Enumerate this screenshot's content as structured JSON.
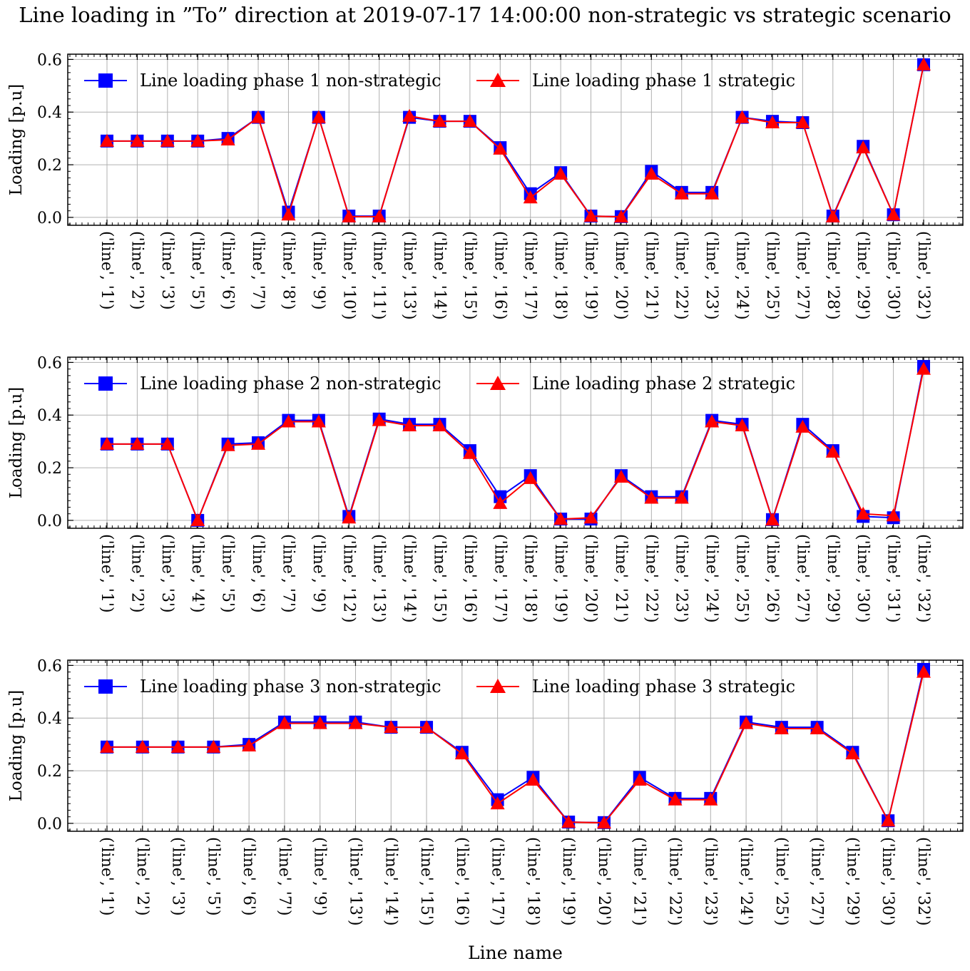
{
  "title": "Line loading in ”To” direction at 2019-07-17 14:00:00 non-strategic vs strategic scenario",
  "xlabel": "Line name",
  "colors": {
    "non_strategic": "#0000ff",
    "strategic": "#ff0000",
    "grid": "#b0b0b0"
  },
  "chart_data": [
    {
      "type": "line",
      "ylabel": "Loading [p.u]",
      "ylim": [
        -0.03,
        0.62
      ],
      "yticks": [
        "0.0",
        "0.2",
        "0.4",
        "0.6"
      ],
      "grid": true,
      "legend_placement": "top",
      "categories": [
        "('line', '1')",
        "('line', '2')",
        "('line', '3')",
        "('line', '5')",
        "('line', '6')",
        "('line', '7')",
        "('line', '8')",
        "('line', '9')",
        "('line', '10')",
        "('line', '11')",
        "('line', '13')",
        "('line', '14')",
        "('line', '15')",
        "('line', '16')",
        "('line', '17')",
        "('line', '18')",
        "('line', '19')",
        "('line', '20')",
        "('line', '21')",
        "('line', '22')",
        "('line', '23')",
        "('line', '24')",
        "('line', '25')",
        "('line', '27')",
        "('line', '28')",
        "('line', '29')",
        "('line', '30')",
        "('line', '32')"
      ],
      "series": [
        {
          "name": "Line loading phase 1 non-strategic",
          "marker": "square",
          "values": [
            0.29,
            0.29,
            0.29,
            0.29,
            0.3,
            0.38,
            0.02,
            0.38,
            0.005,
            0.005,
            0.38,
            0.365,
            0.365,
            0.265,
            0.09,
            0.17,
            0.005,
            0.003,
            0.175,
            0.095,
            0.095,
            0.38,
            0.365,
            0.36,
            0.005,
            0.27,
            0.01,
            0.58
          ]
        },
        {
          "name": "Line loading phase 1 strategic",
          "marker": "triangle",
          "values": [
            0.29,
            0.29,
            0.29,
            0.29,
            0.295,
            0.38,
            0.01,
            0.38,
            0.003,
            0.003,
            0.385,
            0.365,
            0.365,
            0.26,
            0.075,
            0.165,
            0.005,
            0.002,
            0.165,
            0.09,
            0.09,
            0.38,
            0.36,
            0.36,
            0.003,
            0.265,
            0.01,
            0.58
          ]
        }
      ]
    },
    {
      "type": "line",
      "ylabel": "Loading [p.u]",
      "ylim": [
        -0.03,
        0.62
      ],
      "yticks": [
        "0.0",
        "0.2",
        "0.4",
        "0.6"
      ],
      "grid": true,
      "legend_placement": "top",
      "categories": [
        "('line', '1')",
        "('line', '2')",
        "('line', '3')",
        "('line', '4')",
        "('line', '5')",
        "('line', '6')",
        "('line', '7')",
        "('line', '9')",
        "('line', '12')",
        "('line', '13')",
        "('line', '14')",
        "('line', '15')",
        "('line', '16')",
        "('line', '17')",
        "('line', '18')",
        "('line', '19')",
        "('line', '20')",
        "('line', '21')",
        "('line', '22')",
        "('line', '23')",
        "('line', '24')",
        "('line', '25')",
        "('line', '26')",
        "('line', '27')",
        "('line', '29')",
        "('line', '30')",
        "('line', '31')",
        "('line', '32')"
      ],
      "series": [
        {
          "name": "Line loading phase 2 non-strategic",
          "marker": "square",
          "values": [
            0.29,
            0.29,
            0.29,
            0.0,
            0.29,
            0.295,
            0.38,
            0.38,
            0.015,
            0.385,
            0.365,
            0.365,
            0.265,
            0.09,
            0.17,
            0.005,
            0.005,
            0.17,
            0.09,
            0.09,
            0.38,
            0.365,
            0.003,
            0.365,
            0.265,
            0.015,
            0.01,
            0.585
          ]
        },
        {
          "name": "Line loading phase 2 strategic",
          "marker": "triangle",
          "values": [
            0.29,
            0.29,
            0.29,
            0.0,
            0.285,
            0.29,
            0.375,
            0.375,
            0.01,
            0.38,
            0.36,
            0.36,
            0.255,
            0.065,
            0.16,
            0.005,
            0.01,
            0.165,
            0.085,
            0.085,
            0.375,
            0.36,
            0.002,
            0.355,
            0.26,
            0.025,
            0.018,
            0.575
          ]
        }
      ]
    },
    {
      "type": "line",
      "ylabel": "Loading [p.u]",
      "ylim": [
        -0.03,
        0.62
      ],
      "yticks": [
        "0.0",
        "0.2",
        "0.4",
        "0.6"
      ],
      "grid": true,
      "legend_placement": "top",
      "categories": [
        "('line', '1')",
        "('line', '2')",
        "('line', '3')",
        "('line', '5')",
        "('line', '6')",
        "('line', '7')",
        "('line', '9')",
        "('line', '13')",
        "('line', '14')",
        "('line', '15')",
        "('line', '16')",
        "('line', '17')",
        "('line', '18')",
        "('line', '19')",
        "('line', '20')",
        "('line', '21')",
        "('line', '22')",
        "('line', '23')",
        "('line', '24')",
        "('line', '25')",
        "('line', '27')",
        "('line', '29')",
        "('line', '30')",
        "('line', '32')"
      ],
      "series": [
        {
          "name": "Line loading phase 3 non-strategic",
          "marker": "square",
          "values": [
            0.29,
            0.29,
            0.29,
            0.29,
            0.3,
            0.385,
            0.385,
            0.385,
            0.365,
            0.365,
            0.27,
            0.09,
            0.175,
            0.005,
            0.003,
            0.175,
            0.095,
            0.095,
            0.385,
            0.365,
            0.365,
            0.27,
            0.01,
            0.585
          ]
        },
        {
          "name": "Line loading phase 3 strategic",
          "marker": "triangle",
          "values": [
            0.29,
            0.29,
            0.29,
            0.29,
            0.295,
            0.38,
            0.38,
            0.38,
            0.365,
            0.365,
            0.265,
            0.075,
            0.165,
            0.005,
            0.002,
            0.165,
            0.09,
            0.09,
            0.38,
            0.36,
            0.36,
            0.265,
            0.01,
            0.575
          ]
        }
      ]
    }
  ]
}
